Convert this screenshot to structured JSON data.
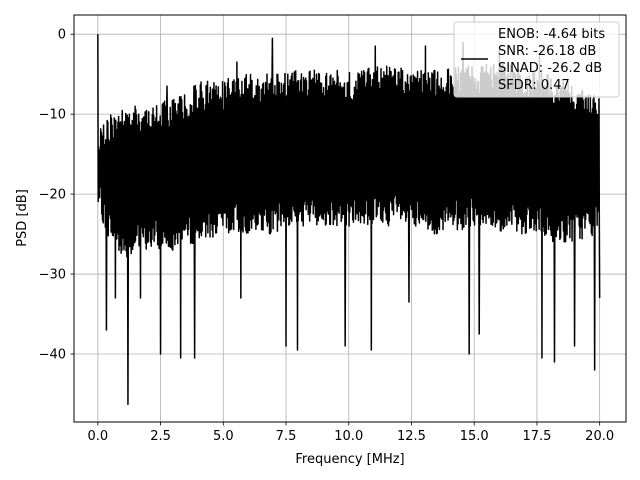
{
  "chart_data": {
    "type": "line",
    "xlabel": "Frequency [MHz]",
    "ylabel": "PSD [dB]",
    "xlim": [
      -0.95,
      21.05
    ],
    "ylim": [
      -48.5,
      2.4
    ],
    "x_ticks": [
      0.0,
      2.5,
      5.0,
      7.5,
      10.0,
      12.5,
      15.0,
      17.5,
      20.0
    ],
    "x_tick_labels": [
      "0.0",
      "2.5",
      "5.0",
      "7.5",
      "10.0",
      "12.5",
      "15.0",
      "17.5",
      "20.0"
    ],
    "y_ticks": [
      0,
      -10,
      -20,
      -30,
      -40
    ],
    "y_tick_labels": [
      "0",
      "−10",
      "−20",
      "−30",
      "−40"
    ],
    "grid": true,
    "legend_placement": "top-right",
    "line_color": "#000000",
    "series": [
      {
        "name": "ENOB: -4.64 bits\nSNR: -26.18 dB\nSINAD: -26.2 dB\nSFDR: 0.47",
        "legend_lines": [
          "ENOB: -4.64 bits",
          "SNR: -26.18 dB",
          "SINAD: -26.2 dB",
          "SFDR: 0.47"
        ],
        "x_range": [
          0.0,
          20.0
        ],
        "approx_upper_envelope": [
          [
            0.0,
            -12
          ],
          [
            0.5,
            -10
          ],
          [
            1.0,
            -9
          ],
          [
            2.0,
            -9
          ],
          [
            3.0,
            -8
          ],
          [
            4.0,
            -6
          ],
          [
            5.0,
            -5.5
          ],
          [
            6.0,
            -5
          ],
          [
            7.0,
            -5
          ],
          [
            8.0,
            -4.5
          ],
          [
            9.0,
            -4.5
          ],
          [
            10.0,
            -4.5
          ],
          [
            11.0,
            -4
          ],
          [
            12.0,
            -4
          ],
          [
            13.0,
            -4.5
          ],
          [
            14.0,
            -4
          ],
          [
            15.0,
            -4
          ],
          [
            16.0,
            -3.5
          ],
          [
            17.0,
            -4.5
          ],
          [
            18.0,
            -5
          ],
          [
            19.0,
            -6
          ],
          [
            20.0,
            -8
          ]
        ],
        "approx_lower_envelope": [
          [
            0.0,
            -22
          ],
          [
            0.5,
            -26
          ],
          [
            1.0,
            -28
          ],
          [
            2.0,
            -27
          ],
          [
            3.0,
            -27
          ],
          [
            4.0,
            -26
          ],
          [
            5.0,
            -25
          ],
          [
            6.0,
            -25
          ],
          [
            7.0,
            -25
          ],
          [
            8.0,
            -24
          ],
          [
            9.0,
            -24
          ],
          [
            10.0,
            -24
          ],
          [
            11.0,
            -24
          ],
          [
            12.0,
            -24
          ],
          [
            13.0,
            -25
          ],
          [
            14.0,
            -25
          ],
          [
            15.0,
            -24
          ],
          [
            16.0,
            -25
          ],
          [
            17.0,
            -25
          ],
          [
            18.0,
            -26
          ],
          [
            19.0,
            -26
          ],
          [
            20.0,
            -25
          ]
        ],
        "peaks": [
          {
            "x": 0.0,
            "y": 0.0
          },
          {
            "x": 2.75,
            "y": -6.5
          },
          {
            "x": 5.55,
            "y": -3.5
          },
          {
            "x": 6.95,
            "y": -0.5
          },
          {
            "x": 11.05,
            "y": -1.5
          },
          {
            "x": 13.05,
            "y": -1.5
          },
          {
            "x": 14.55,
            "y": -1.0
          },
          {
            "x": 16.0,
            "y": -2.0
          },
          {
            "x": 17.6,
            "y": -2.5
          }
        ],
        "dips": [
          {
            "x": 0.35,
            "y": -37
          },
          {
            "x": 0.7,
            "y": -33
          },
          {
            "x": 1.2,
            "y": -46.3
          },
          {
            "x": 1.7,
            "y": -33
          },
          {
            "x": 2.5,
            "y": -40
          },
          {
            "x": 3.3,
            "y": -40.5
          },
          {
            "x": 3.85,
            "y": -40.5
          },
          {
            "x": 5.7,
            "y": -33
          },
          {
            "x": 7.5,
            "y": -39
          },
          {
            "x": 7.95,
            "y": -39.5
          },
          {
            "x": 9.85,
            "y": -39
          },
          {
            "x": 10.9,
            "y": -39.5
          },
          {
            "x": 12.4,
            "y": -33.5
          },
          {
            "x": 14.8,
            "y": -40
          },
          {
            "x": 15.2,
            "y": -37.5
          },
          {
            "x": 17.7,
            "y": -40.5
          },
          {
            "x": 18.2,
            "y": -41
          },
          {
            "x": 19.0,
            "y": -39
          },
          {
            "x": 19.8,
            "y": -42
          },
          {
            "x": 20.0,
            "y": -33
          }
        ]
      }
    ]
  }
}
